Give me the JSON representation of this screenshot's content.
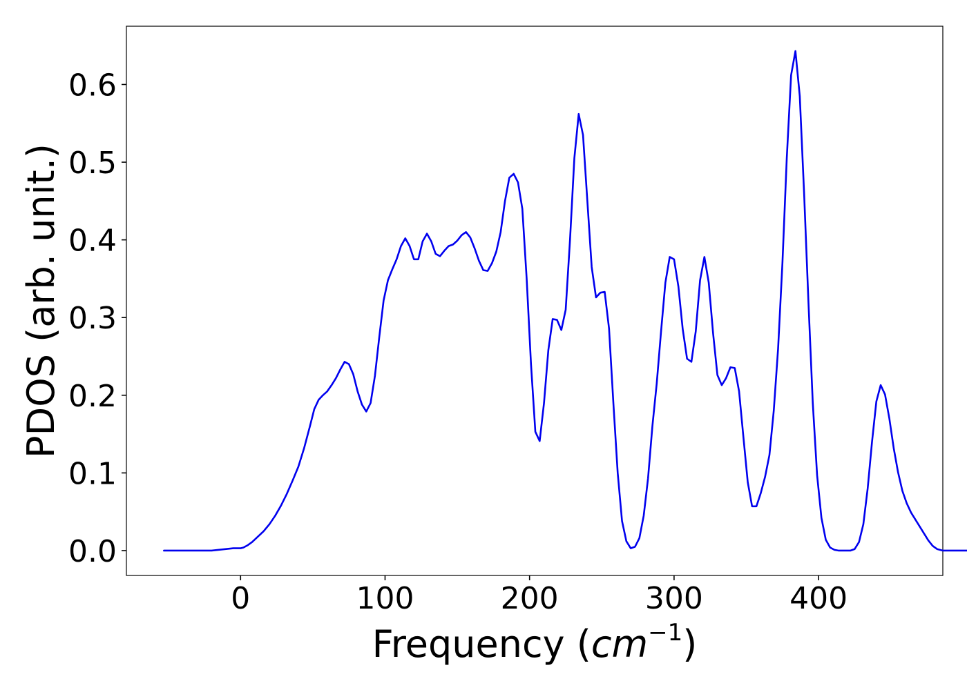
{
  "chart_data": {
    "type": "line",
    "title": "",
    "xlabel_prefix": "Frequency (",
    "xlabel_unit": "cm",
    "xlabel_exponent": "−1",
    "xlabel_suffix": ")",
    "ylabel": "PDOS (arb. unit.)",
    "xlim": [
      -79,
      486
    ],
    "ylim": [
      -0.032,
      0.675
    ],
    "xticks": [
      0,
      100,
      200,
      300,
      400
    ],
    "xtick_labels": [
      "0",
      "100",
      "200",
      "300",
      "400"
    ],
    "yticks": [
      0.0,
      0.1,
      0.2,
      0.3,
      0.4,
      0.5,
      0.6
    ],
    "ytick_labels": [
      "0.0",
      "0.1",
      "0.2",
      "0.3",
      "0.4",
      "0.5",
      "0.6"
    ],
    "grid": false,
    "legend": "none",
    "series": [
      {
        "color": "#0000ee",
        "points": [
          [
            -53,
            0.0
          ],
          [
            -40,
            0.0
          ],
          [
            -30,
            0.0
          ],
          [
            -20,
            0.0
          ],
          [
            -15,
            0.001
          ],
          [
            -10,
            0.002
          ],
          [
            -5,
            0.003
          ],
          [
            0,
            0.003
          ],
          [
            2,
            0.004
          ],
          [
            5,
            0.007
          ],
          [
            8,
            0.011
          ],
          [
            12,
            0.018
          ],
          [
            16,
            0.025
          ],
          [
            20,
            0.034
          ],
          [
            24,
            0.045
          ],
          [
            28,
            0.058
          ],
          [
            32,
            0.073
          ],
          [
            36,
            0.09
          ],
          [
            40,
            0.108
          ],
          [
            44,
            0.132
          ],
          [
            48,
            0.16
          ],
          [
            51,
            0.182
          ],
          [
            54,
            0.194
          ],
          [
            57,
            0.2
          ],
          [
            60,
            0.205
          ],
          [
            63,
            0.213
          ],
          [
            66,
            0.222
          ],
          [
            69,
            0.233
          ],
          [
            72,
            0.243
          ],
          [
            75,
            0.24
          ],
          [
            78,
            0.227
          ],
          [
            81,
            0.205
          ],
          [
            84,
            0.188
          ],
          [
            87,
            0.179
          ],
          [
            90,
            0.19
          ],
          [
            93,
            0.225
          ],
          [
            96,
            0.275
          ],
          [
            99,
            0.322
          ],
          [
            102,
            0.348
          ],
          [
            105,
            0.362
          ],
          [
            108,
            0.375
          ],
          [
            111,
            0.392
          ],
          [
            114,
            0.402
          ],
          [
            117,
            0.392
          ],
          [
            120,
            0.375
          ],
          [
            123,
            0.375
          ],
          [
            126,
            0.398
          ],
          [
            129,
            0.408
          ],
          [
            132,
            0.398
          ],
          [
            135,
            0.382
          ],
          [
            138,
            0.379
          ],
          [
            141,
            0.386
          ],
          [
            144,
            0.392
          ],
          [
            147,
            0.394
          ],
          [
            150,
            0.399
          ],
          [
            153,
            0.406
          ],
          [
            156,
            0.41
          ],
          [
            159,
            0.403
          ],
          [
            162,
            0.389
          ],
          [
            165,
            0.373
          ],
          [
            168,
            0.361
          ],
          [
            171,
            0.36
          ],
          [
            174,
            0.37
          ],
          [
            177,
            0.385
          ],
          [
            180,
            0.41
          ],
          [
            183,
            0.45
          ],
          [
            186,
            0.48
          ],
          [
            189,
            0.485
          ],
          [
            192,
            0.474
          ],
          [
            195,
            0.44
          ],
          [
            198,
            0.35
          ],
          [
            201,
            0.24
          ],
          [
            204,
            0.153
          ],
          [
            207,
            0.141
          ],
          [
            210,
            0.19
          ],
          [
            213,
            0.258
          ],
          [
            216,
            0.298
          ],
          [
            219,
            0.297
          ],
          [
            222,
            0.284
          ],
          [
            225,
            0.31
          ],
          [
            228,
            0.4
          ],
          [
            231,
            0.505
          ],
          [
            234,
            0.562
          ],
          [
            237,
            0.535
          ],
          [
            240,
            0.45
          ],
          [
            243,
            0.365
          ],
          [
            246,
            0.326
          ],
          [
            249,
            0.332
          ],
          [
            252,
            0.333
          ],
          [
            255,
            0.286
          ],
          [
            258,
            0.19
          ],
          [
            261,
            0.1
          ],
          [
            264,
            0.038
          ],
          [
            267,
            0.012
          ],
          [
            270,
            0.003
          ],
          [
            273,
            0.005
          ],
          [
            276,
            0.016
          ],
          [
            279,
            0.045
          ],
          [
            282,
            0.093
          ],
          [
            285,
            0.16
          ],
          [
            288,
            0.215
          ],
          [
            291,
            0.282
          ],
          [
            294,
            0.345
          ],
          [
            297,
            0.378
          ],
          [
            300,
            0.375
          ],
          [
            303,
            0.34
          ],
          [
            306,
            0.285
          ],
          [
            309,
            0.247
          ],
          [
            312,
            0.243
          ],
          [
            315,
            0.282
          ],
          [
            318,
            0.348
          ],
          [
            321,
            0.378
          ],
          [
            324,
            0.345
          ],
          [
            327,
            0.28
          ],
          [
            330,
            0.226
          ],
          [
            333,
            0.213
          ],
          [
            336,
            0.222
          ],
          [
            339,
            0.236
          ],
          [
            342,
            0.235
          ],
          [
            345,
            0.205
          ],
          [
            348,
            0.146
          ],
          [
            351,
            0.088
          ],
          [
            354,
            0.057
          ],
          [
            357,
            0.057
          ],
          [
            360,
            0.074
          ],
          [
            363,
            0.095
          ],
          [
            366,
            0.123
          ],
          [
            369,
            0.18
          ],
          [
            372,
            0.26
          ],
          [
            375,
            0.37
          ],
          [
            378,
            0.505
          ],
          [
            381,
            0.612
          ],
          [
            384,
            0.643
          ],
          [
            387,
            0.585
          ],
          [
            390,
            0.46
          ],
          [
            393,
            0.32
          ],
          [
            396,
            0.19
          ],
          [
            399,
            0.097
          ],
          [
            402,
            0.042
          ],
          [
            405,
            0.014
          ],
          [
            408,
            0.004
          ],
          [
            411,
            0.001
          ],
          [
            414,
            0.0
          ],
          [
            418,
            0.0
          ],
          [
            422,
            0.0
          ],
          [
            425,
            0.002
          ],
          [
            428,
            0.011
          ],
          [
            431,
            0.034
          ],
          [
            434,
            0.08
          ],
          [
            437,
            0.14
          ],
          [
            440,
            0.192
          ],
          [
            443,
            0.213
          ],
          [
            446,
            0.201
          ],
          [
            449,
            0.17
          ],
          [
            452,
            0.132
          ],
          [
            455,
            0.101
          ],
          [
            458,
            0.077
          ],
          [
            461,
            0.061
          ],
          [
            464,
            0.049
          ],
          [
            467,
            0.04
          ],
          [
            470,
            0.031
          ],
          [
            473,
            0.022
          ],
          [
            476,
            0.013
          ],
          [
            479,
            0.006
          ],
          [
            482,
            0.002
          ],
          [
            486,
            0.0
          ],
          [
            490,
            0.0
          ],
          [
            500,
            0.0
          ],
          [
            512,
            0.0
          ]
        ]
      }
    ]
  }
}
